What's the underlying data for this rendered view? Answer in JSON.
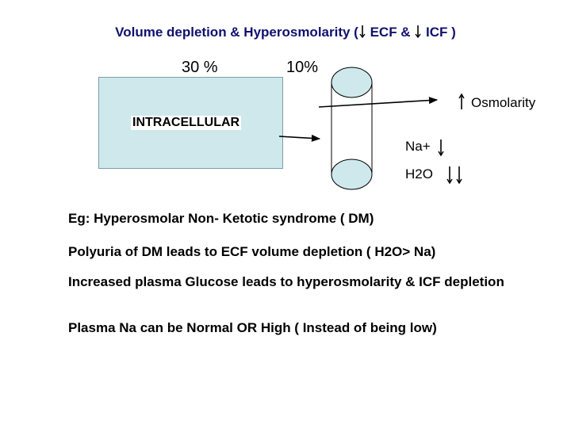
{
  "title": {
    "prefix": "Volume depletion & Hyperosmolarity (",
    "ecf": "ECF &",
    "icf": "ICF )"
  },
  "compartments": {
    "intracellular_pct": "30 %",
    "extracellular_pct": "10%",
    "intracellular_label": "INTRACELLULAR"
  },
  "labels": {
    "osmolarity": "Osmolarity",
    "na": "Na+",
    "h2o": "H2O"
  },
  "notes": [
    "Eg: Hyperosmolar Non- Ketotic syndrome ( DM)",
    "Polyuria of DM leads to ECF volume depletion ( H2O> Na)",
    "Increased plasma Glucose leads to hyperosmolarity & ICF depletion",
    "Plasma Na can be Normal OR High ( Instead of being low)"
  ],
  "colors": {
    "title": "#10106e",
    "fill": "#cfe8ec"
  }
}
